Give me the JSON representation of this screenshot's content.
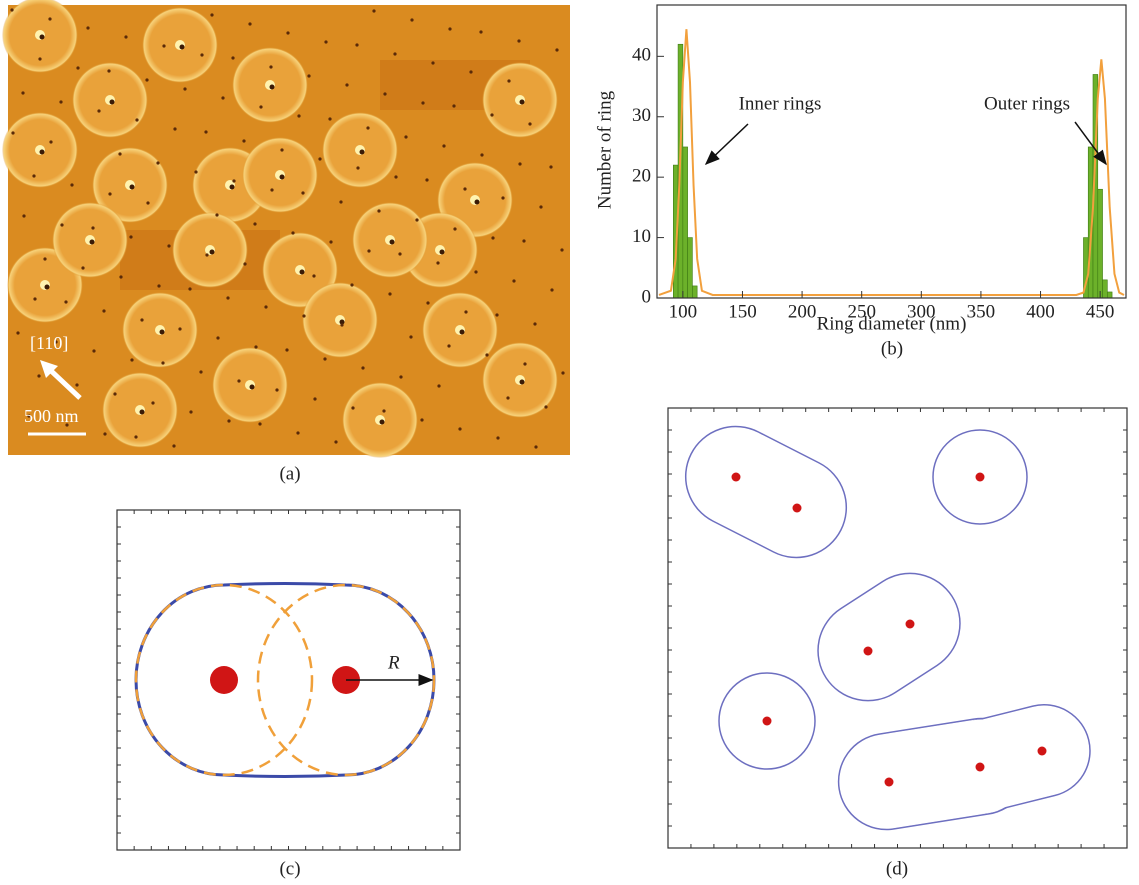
{
  "panels": {
    "a": {
      "label": "(a)",
      "direction": "[110]",
      "scale_bar": "500 nm"
    },
    "b": {
      "label": "(b)"
    },
    "c": {
      "label": "(c)",
      "radius_label": "R"
    },
    "d": {
      "label": "(d)"
    }
  },
  "chart_data": {
    "type": "histogram",
    "xlabel": "Ring diameter (nm)",
    "ylabel": "Number of ring",
    "bins": [
      92,
      96,
      100,
      104,
      108,
      112,
      436,
      440,
      444,
      448,
      452,
      456,
      460
    ],
    "counts": [
      22,
      42,
      25,
      10,
      2,
      0,
      10,
      25,
      37,
      18,
      3,
      1
    ],
    "color": "#6cb12a",
    "fit": {
      "color": "#f2a03d",
      "x": [
        80,
        90,
        94,
        97,
        100,
        103,
        106,
        109,
        112,
        116,
        125,
        420,
        430,
        436,
        440,
        444,
        448,
        451,
        454,
        458,
        462,
        466,
        470
      ],
      "values": [
        0.5,
        1.2,
        6.5,
        18.6,
        35.7,
        44.5,
        35.7,
        18.6,
        6.5,
        1.2,
        0.5,
        0.5,
        0.5,
        0.9,
        4,
        15,
        33,
        39.5,
        33,
        15,
        4,
        0.9,
        0.5
      ]
    },
    "annotations": [
      "Inner rings",
      "Outer rings"
    ],
    "xlim": [
      80,
      470
    ],
    "ylim": [
      0,
      48
    ],
    "xticks": [
      100,
      150,
      200,
      250,
      300,
      350,
      400,
      450
    ],
    "yticks": [
      0,
      10,
      20,
      30,
      40
    ]
  }
}
